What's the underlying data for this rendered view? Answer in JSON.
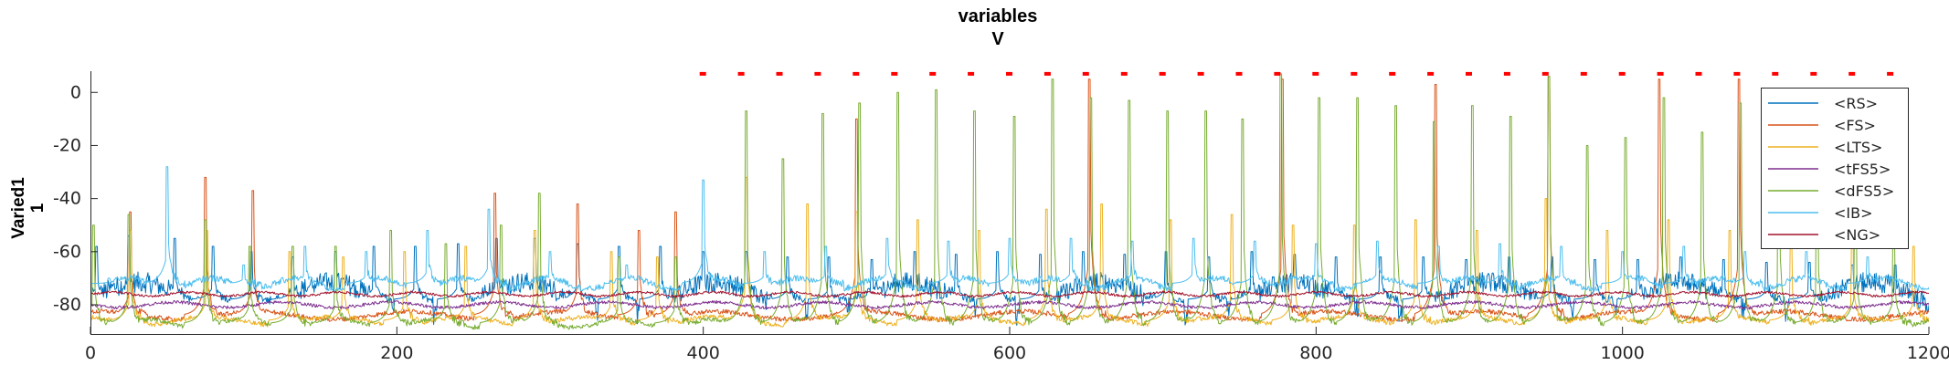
{
  "chart_data": {
    "type": "line",
    "title": "variables",
    "subtitle": "V",
    "xlabel": "",
    "ylabel_line1": "Varied1",
    "ylabel_line2": "1",
    "xlim": [
      0,
      1200
    ],
    "ylim": [
      -91,
      8
    ],
    "xticks": [
      {
        "value": 0,
        "label": "0"
      },
      {
        "value": 200,
        "label": "200"
      },
      {
        "value": 400,
        "label": "400"
      },
      {
        "value": 600,
        "label": "600"
      },
      {
        "value": 800,
        "label": "800"
      },
      {
        "value": 1000,
        "label": "1000"
      },
      {
        "value": 1200,
        "label": "1200"
      }
    ],
    "yticks": [
      {
        "value": 0,
        "label": "0"
      },
      {
        "value": -20,
        "label": "-20"
      },
      {
        "value": -40,
        "label": "-40"
      },
      {
        "value": -60,
        "label": "-60"
      },
      {
        "value": -80,
        "label": "-80"
      }
    ],
    "grid": false,
    "legend_position": "top-right",
    "markers": {
      "color": "#ff0000",
      "y": 7,
      "x": [
        400,
        425,
        450,
        475,
        500,
        525,
        550,
        575,
        600,
        625,
        650,
        675,
        700,
        725,
        750,
        775,
        800,
        825,
        850,
        875,
        900,
        925,
        950,
        975,
        1000,
        1025,
        1050,
        1075,
        1100,
        1125,
        1150,
        1175
      ]
    },
    "series": [
      {
        "name": "<RS>",
        "color": "#0072bd",
        "baseline": -78,
        "amplitude": 13,
        "peaks": [
          [
            4,
            -58
          ],
          [
            25,
            -54
          ],
          [
            55,
            -55
          ],
          [
            80,
            -58
          ],
          [
            105,
            -60
          ],
          [
            132,
            -62
          ],
          [
            160,
            -60
          ],
          [
            185,
            -58
          ],
          [
            212,
            -58
          ],
          [
            240,
            -57
          ],
          [
            265,
            -55
          ],
          [
            290,
            -55
          ],
          [
            318,
            -57
          ],
          [
            345,
            -58
          ],
          [
            372,
            -58
          ],
          [
            400,
            -60
          ],
          [
            428,
            -60
          ],
          [
            455,
            -62
          ],
          [
            482,
            -62
          ],
          [
            510,
            -63
          ],
          [
            538,
            -60
          ],
          [
            565,
            -61
          ],
          [
            592,
            -60
          ],
          [
            620,
            -61
          ],
          [
            648,
            -60
          ],
          [
            675,
            -61
          ],
          [
            702,
            -60
          ],
          [
            730,
            -62
          ],
          [
            758,
            -60
          ],
          [
            786,
            -61
          ],
          [
            813,
            -62
          ],
          [
            842,
            -62
          ],
          [
            870,
            -62
          ],
          [
            898,
            -63
          ],
          [
            926,
            -62
          ],
          [
            954,
            -62
          ],
          [
            982,
            -63
          ],
          [
            1010,
            -63
          ],
          [
            1038,
            -62
          ],
          [
            1066,
            -63
          ],
          [
            1094,
            -64
          ],
          [
            1122,
            -64
          ],
          [
            1150,
            -65
          ],
          [
            1178,
            -65
          ]
        ]
      },
      {
        "name": "<FS>",
        "color": "#d95319",
        "baseline": -84,
        "amplitude": 3,
        "peaks": [
          [
            26,
            -45
          ],
          [
            75,
            -32
          ],
          [
            106,
            -37
          ],
          [
            264,
            -38
          ],
          [
            318,
            -42
          ],
          [
            358,
            -52
          ],
          [
            382,
            -45
          ],
          [
            500,
            -10
          ],
          [
            652,
            5
          ],
          [
            778,
            5
          ],
          [
            878,
            3
          ],
          [
            952,
            6
          ],
          [
            1024,
            5
          ],
          [
            1076,
            5
          ]
        ]
      },
      {
        "name": "<LTS>",
        "color": "#edb120",
        "baseline": -86,
        "amplitude": 3,
        "peaks": [
          [
            26,
            -52
          ],
          [
            76,
            -52
          ],
          [
            130,
            -60
          ],
          [
            165,
            -62
          ],
          [
            205,
            -60
          ],
          [
            245,
            -58
          ],
          [
            290,
            -52
          ],
          [
            340,
            -60
          ],
          [
            370,
            -62
          ],
          [
            428,
            -32
          ],
          [
            468,
            -42
          ],
          [
            500,
            -45
          ],
          [
            540,
            -48
          ],
          [
            580,
            -52
          ],
          [
            624,
            -44
          ],
          [
            660,
            -42
          ],
          [
            705,
            -48
          ],
          [
            745,
            -46
          ],
          [
            785,
            -50
          ],
          [
            825,
            -50
          ],
          [
            865,
            -48
          ],
          [
            905,
            -52
          ],
          [
            950,
            -40
          ],
          [
            990,
            -52
          ],
          [
            1030,
            -48
          ],
          [
            1070,
            -52
          ],
          [
            1110,
            -55
          ],
          [
            1150,
            -55
          ],
          [
            1190,
            -58
          ]
        ]
      },
      {
        "name": "<tFS5>",
        "color": "#7e2f8e",
        "baseline": -80,
        "amplitude": 2,
        "peaks": []
      },
      {
        "name": "<dFS5>",
        "color": "#77ac30",
        "baseline": -87,
        "amplitude": 3,
        "peaks": [
          [
            2,
            -50
          ],
          [
            25,
            -46
          ],
          [
            75,
            -48
          ],
          [
            104,
            -58
          ],
          [
            132,
            -58
          ],
          [
            160,
            -58
          ],
          [
            196,
            -52
          ],
          [
            232,
            -57
          ],
          [
            268,
            -50
          ],
          [
            293,
            -38
          ],
          [
            345,
            -62
          ],
          [
            382,
            -62
          ],
          [
            428,
            -7
          ],
          [
            452,
            -25
          ],
          [
            478,
            -8
          ],
          [
            502,
            -4
          ],
          [
            527,
            0
          ],
          [
            552,
            1
          ],
          [
            577,
            -7
          ],
          [
            603,
            -9
          ],
          [
            628,
            5
          ],
          [
            653,
            -2
          ],
          [
            678,
            -3
          ],
          [
            703,
            -7
          ],
          [
            728,
            -7
          ],
          [
            752,
            -10
          ],
          [
            777,
            7
          ],
          [
            802,
            -2
          ],
          [
            827,
            -2
          ],
          [
            852,
            -5
          ],
          [
            877,
            -11
          ],
          [
            902,
            -5
          ],
          [
            927,
            -9
          ],
          [
            952,
            6
          ],
          [
            977,
            -20
          ],
          [
            1002,
            -17
          ],
          [
            1027,
            -2
          ],
          [
            1052,
            -15
          ],
          [
            1077,
            -4
          ],
          [
            1102,
            -20
          ],
          [
            1127,
            -33
          ],
          [
            1152,
            -40
          ],
          [
            1177,
            -50
          ]
        ]
      },
      {
        "name": "<IB>",
        "color": "#4dbeee",
        "baseline": -72,
        "amplitude": 4,
        "peaks": [
          [
            12,
            -70
          ],
          [
            50,
            -28
          ],
          [
            100,
            -65
          ],
          [
            140,
            -58
          ],
          [
            180,
            -60
          ],
          [
            220,
            -52
          ],
          [
            260,
            -44
          ],
          [
            300,
            -60
          ],
          [
            350,
            -65
          ],
          [
            400,
            -33
          ],
          [
            440,
            -60
          ],
          [
            480,
            -58
          ],
          [
            520,
            -55
          ],
          [
            560,
            -56
          ],
          [
            600,
            -55
          ],
          [
            640,
            -55
          ],
          [
            680,
            -56
          ],
          [
            720,
            -55
          ],
          [
            760,
            -56
          ],
          [
            800,
            -57
          ],
          [
            840,
            -56
          ],
          [
            880,
            -58
          ],
          [
            920,
            -57
          ],
          [
            960,
            -58
          ],
          [
            1000,
            -60
          ],
          [
            1040,
            -58
          ],
          [
            1080,
            -60
          ],
          [
            1120,
            -60
          ],
          [
            1160,
            -62
          ]
        ]
      },
      {
        "name": "<NG>",
        "color": "#a2142f",
        "baseline": -76,
        "amplitude": 1.5,
        "peaks": []
      }
    ]
  }
}
